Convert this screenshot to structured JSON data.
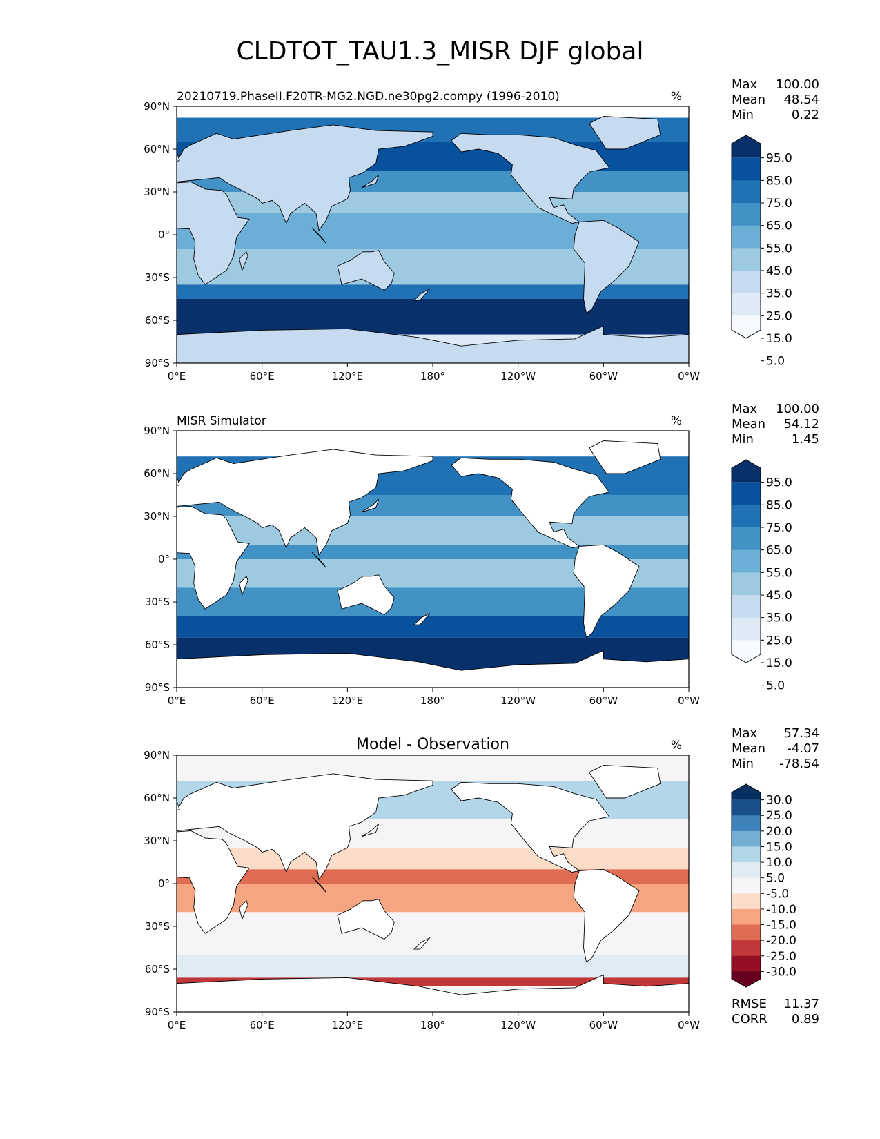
{
  "figure": {
    "title": "CLDTOT_TAU1.3_MISR DJF global"
  },
  "axes": {
    "lat_ticks": [
      "90°N",
      "60°N",
      "30°N",
      "0°",
      "30°S",
      "60°S",
      "90°S"
    ],
    "lon_ticks": [
      "0°E",
      "60°E",
      "120°E",
      "180°",
      "120°W",
      "60°W",
      "0°W"
    ]
  },
  "panels": [
    {
      "title_left": "20210719.PhaseII.F20TR-MG2.NGD.ne30pg2.compy (1996-2010)",
      "title_center": "",
      "units": "%",
      "stats": {
        "max_label": "Max",
        "max": "100.00",
        "mean_label": "Mean",
        "mean": "48.54",
        "min_label": "Min",
        "min": "0.22"
      },
      "colorbar": {
        "ticks": [
          "95.0",
          "85.0",
          "75.0",
          "65.0",
          "55.0",
          "45.0",
          "35.0",
          "25.0",
          "15.0",
          "5.0"
        ],
        "colors": [
          "#08306b",
          "#08519c",
          "#2171b5",
          "#4292c6",
          "#6baed6",
          "#9ecae1",
          "#c6dbef",
          "#deebf7",
          "#f7fbff"
        ]
      }
    },
    {
      "title_left": "MISR Simulator",
      "title_center": "",
      "units": "%",
      "stats": {
        "max_label": "Max",
        "max": "100.00",
        "mean_label": "Mean",
        "mean": "54.12",
        "min_label": "Min",
        "min": "1.45"
      },
      "colorbar": {
        "ticks": [
          "95.0",
          "85.0",
          "75.0",
          "65.0",
          "55.0",
          "45.0",
          "35.0",
          "25.0",
          "15.0",
          "5.0"
        ],
        "colors": [
          "#08306b",
          "#08519c",
          "#2171b5",
          "#4292c6",
          "#6baed6",
          "#9ecae1",
          "#c6dbef",
          "#deebf7",
          "#f7fbff"
        ]
      }
    },
    {
      "title_left": "",
      "title_center": "Model - Observation",
      "units": "%",
      "stats": {
        "max_label": "Max",
        "max": "57.34",
        "mean_label": "Mean",
        "mean": "-4.07",
        "min_label": "Min",
        "min": "-78.54"
      },
      "colorbar": {
        "ticks": [
          "30.0",
          "25.0",
          "20.0",
          "15.0",
          "10.0",
          "5.0",
          "-5.0",
          "-10.0",
          "-15.0",
          "-20.0",
          "-25.0",
          "-30.0"
        ],
        "colors": [
          "#053061",
          "#1a4f8a",
          "#3d82b9",
          "#74afd3",
          "#b3d6e8",
          "#e0ecf3",
          "#f5f5f5",
          "#fbdcc8",
          "#f5a582",
          "#df6d54",
          "#c13639",
          "#940e26",
          "#67001f"
        ]
      },
      "metrics": {
        "rmse_label": "RMSE",
        "rmse": "11.37",
        "corr_label": "CORR",
        "corr": "0.89"
      }
    }
  ]
}
